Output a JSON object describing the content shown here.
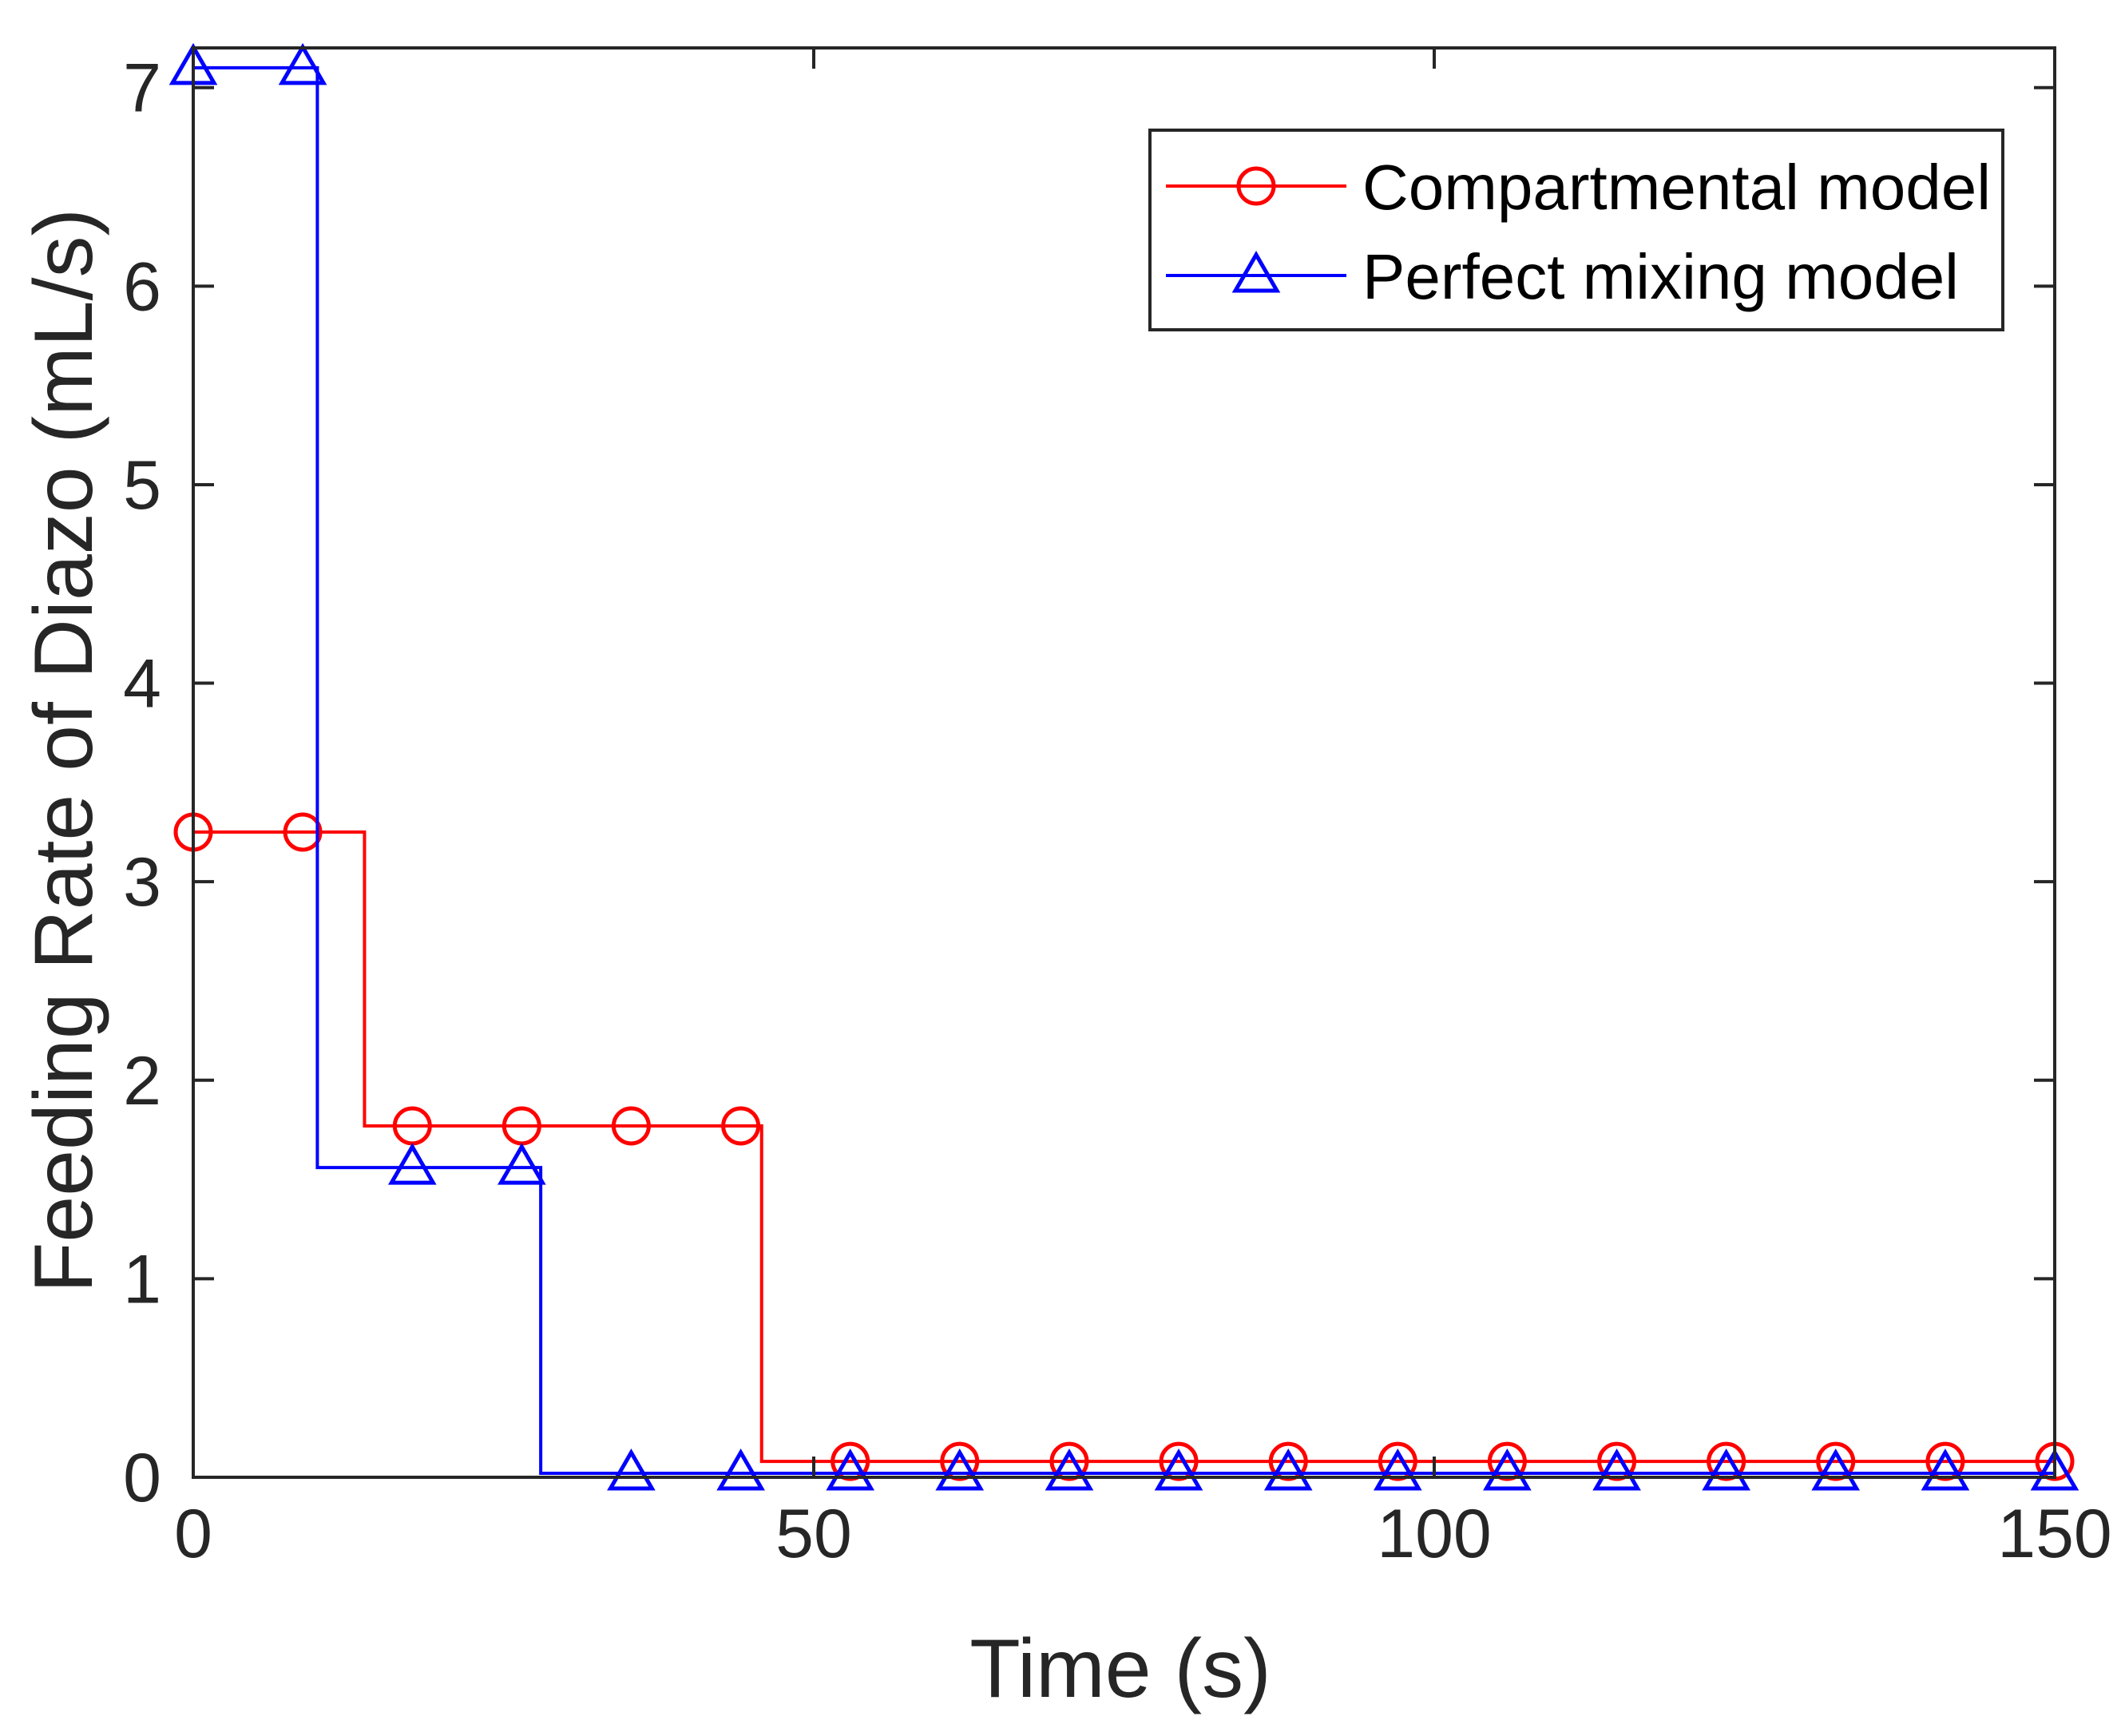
{
  "chart_data": {
    "type": "line",
    "step": true,
    "xlabel": "Time (s)",
    "ylabel": "Feeding Rate of Diazo (mL/s)",
    "xlim": [
      0,
      150
    ],
    "ylim": [
      0,
      7.2
    ],
    "xticks": [
      0,
      50,
      100,
      150
    ],
    "yticks": [
      0,
      1,
      2,
      3,
      4,
      5,
      6,
      7
    ],
    "grid": false,
    "box": true,
    "legend_position": "top-right",
    "colors": {
      "axis": "#262626",
      "compartmental": "#ff0000",
      "perfect": "#0000ff"
    },
    "series": [
      {
        "name": "Compartmental model",
        "marker": "circle",
        "color": "#ff0000",
        "steps": [
          {
            "x_start": 0,
            "x_end": 13.8,
            "value": 3.25
          },
          {
            "x_start": 13.8,
            "x_end": 45.8,
            "value": 1.77
          },
          {
            "x_start": 45.8,
            "x_end": 150,
            "value": 0.08
          }
        ],
        "marker_x": [
          0,
          8.82,
          17.65,
          26.47,
          35.29,
          44.12,
          52.94,
          61.76,
          70.59,
          79.41,
          88.24,
          97.06,
          105.88,
          114.71,
          123.53,
          132.35,
          141.18,
          150
        ],
        "marker_y": [
          3.25,
          3.25,
          1.77,
          1.77,
          1.77,
          1.77,
          0.08,
          0.08,
          0.08,
          0.08,
          0.08,
          0.08,
          0.08,
          0.08,
          0.08,
          0.08,
          0.08,
          0.08
        ]
      },
      {
        "name": "Perfect mixing model",
        "marker": "triangle",
        "color": "#0000ff",
        "steps": [
          {
            "x_start": 0,
            "x_end": 10,
            "value": 7.1
          },
          {
            "x_start": 10,
            "x_end": 28,
            "value": 1.56
          },
          {
            "x_start": 28,
            "x_end": 150,
            "value": 0.02
          }
        ],
        "marker_x": [
          0,
          8.82,
          17.65,
          26.47,
          35.29,
          44.12,
          52.94,
          61.76,
          70.59,
          79.41,
          88.24,
          97.06,
          105.88,
          114.71,
          123.53,
          132.35,
          141.18,
          150
        ],
        "marker_y": [
          7.1,
          7.1,
          1.56,
          1.56,
          0.02,
          0.02,
          0.02,
          0.02,
          0.02,
          0.02,
          0.02,
          0.02,
          0.02,
          0.02,
          0.02,
          0.02,
          0.02,
          0.02
        ]
      }
    ]
  }
}
